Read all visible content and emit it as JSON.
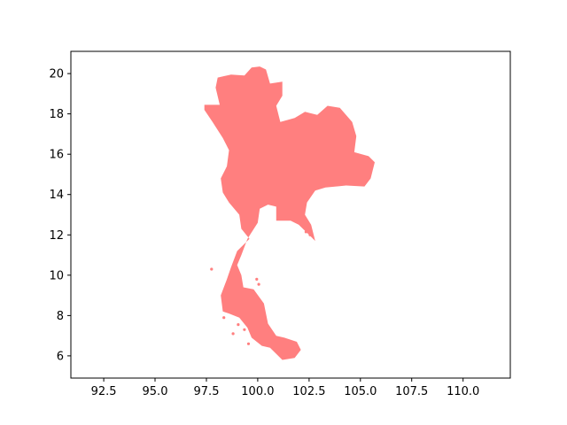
{
  "chart_data": {
    "type": "map",
    "region_shape": "Thailand",
    "fill_color": "#ff7f7f",
    "axis": {
      "x_range": [
        90.9,
        112.3
      ],
      "y_range": [
        4.9,
        21.1
      ],
      "x_ticks": [
        {
          "value": 92.5,
          "label": "92.5"
        },
        {
          "value": 95.0,
          "label": "95.0"
        },
        {
          "value": 97.5,
          "label": "97.5"
        },
        {
          "value": 100.0,
          "label": "100.0"
        },
        {
          "value": 102.5,
          "label": "102.5"
        },
        {
          "value": 105.0,
          "label": "105.0"
        },
        {
          "value": 107.5,
          "label": "107.5"
        },
        {
          "value": 110.0,
          "label": "110.0"
        }
      ],
      "y_ticks": [
        {
          "value": 6,
          "label": "6"
        },
        {
          "value": 8,
          "label": "8"
        },
        {
          "value": 10,
          "label": "10"
        },
        {
          "value": 12,
          "label": "12"
        },
        {
          "value": 14,
          "label": "14"
        },
        {
          "value": 16,
          "label": "16"
        },
        {
          "value": 18,
          "label": "18"
        },
        {
          "value": 20,
          "label": "20"
        }
      ]
    },
    "mainland_outline": [
      [
        97.4,
        18.45
      ],
      [
        98.15,
        18.45
      ],
      [
        97.95,
        19.3
      ],
      [
        98.05,
        19.8
      ],
      [
        98.7,
        19.95
      ],
      [
        99.35,
        19.9
      ],
      [
        99.7,
        20.3
      ],
      [
        100.1,
        20.35
      ],
      [
        100.4,
        20.2
      ],
      [
        100.6,
        19.5
      ],
      [
        101.2,
        19.6
      ],
      [
        101.2,
        18.9
      ],
      [
        100.9,
        18.4
      ],
      [
        101.1,
        17.6
      ],
      [
        101.8,
        17.8
      ],
      [
        102.3,
        18.1
      ],
      [
        102.9,
        17.95
      ],
      [
        103.4,
        18.4
      ],
      [
        104.0,
        18.3
      ],
      [
        104.6,
        17.6
      ],
      [
        104.8,
        16.9
      ],
      [
        104.7,
        16.1
      ],
      [
        105.4,
        15.9
      ],
      [
        105.7,
        15.6
      ],
      [
        105.5,
        14.8
      ],
      [
        105.2,
        14.4
      ],
      [
        104.3,
        14.45
      ],
      [
        103.3,
        14.35
      ],
      [
        102.8,
        14.2
      ],
      [
        102.4,
        13.6
      ],
      [
        102.3,
        13.0
      ],
      [
        102.6,
        12.5
      ],
      [
        102.8,
        11.7
      ],
      [
        102.5,
        12.0
      ],
      [
        102.0,
        12.5
      ],
      [
        101.6,
        12.7
      ],
      [
        100.9,
        12.7
      ],
      [
        100.9,
        13.4
      ],
      [
        100.5,
        13.5
      ],
      [
        100.1,
        13.3
      ],
      [
        100.0,
        12.6
      ],
      [
        99.5,
        11.8
      ],
      [
        99.2,
        11.0
      ],
      [
        99.0,
        10.5
      ],
      [
        99.2,
        10.0
      ],
      [
        99.3,
        9.4
      ],
      [
        99.8,
        9.3
      ],
      [
        100.3,
        8.6
      ],
      [
        100.5,
        7.6
      ],
      [
        100.9,
        7.0
      ],
      [
        101.3,
        6.9
      ],
      [
        101.9,
        6.7
      ],
      [
        102.1,
        6.3
      ],
      [
        101.8,
        5.9
      ],
      [
        101.2,
        5.8
      ],
      [
        100.6,
        6.4
      ],
      [
        100.2,
        6.5
      ],
      [
        99.7,
        6.9
      ],
      [
        99.5,
        7.4
      ],
      [
        99.1,
        7.9
      ],
      [
        98.6,
        8.1
      ],
      [
        98.3,
        8.2
      ],
      [
        98.2,
        9.0
      ],
      [
        98.5,
        9.8
      ],
      [
        98.7,
        10.4
      ],
      [
        99.0,
        11.2
      ],
      [
        99.6,
        11.8
      ],
      [
        99.2,
        12.3
      ],
      [
        99.1,
        13.0
      ],
      [
        98.6,
        13.6
      ],
      [
        98.3,
        14.1
      ],
      [
        98.2,
        14.8
      ],
      [
        98.5,
        15.4
      ],
      [
        98.6,
        16.2
      ],
      [
        98.3,
        16.8
      ],
      [
        97.8,
        17.6
      ],
      [
        97.4,
        18.2
      ]
    ],
    "island_centers": [
      [
        98.35,
        7.9
      ],
      [
        99.05,
        7.55
      ],
      [
        99.35,
        7.3
      ],
      [
        98.8,
        7.1
      ],
      [
        100.05,
        9.55
      ],
      [
        99.95,
        9.8
      ],
      [
        102.55,
        12.0
      ],
      [
        102.35,
        12.15
      ],
      [
        97.75,
        10.3
      ],
      [
        99.55,
        6.6
      ]
    ]
  }
}
